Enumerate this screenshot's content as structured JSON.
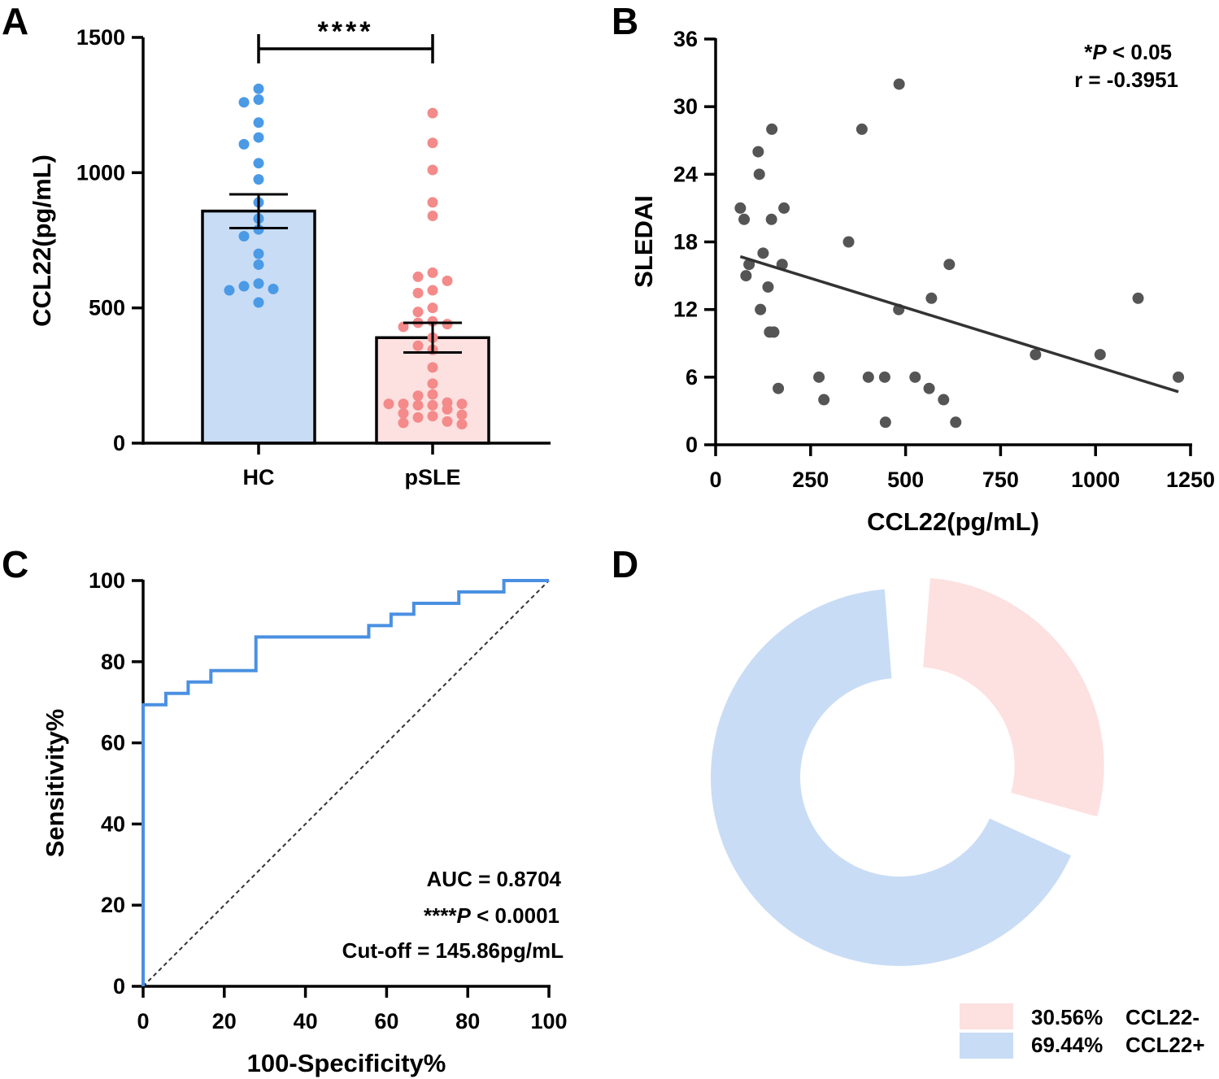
{
  "panels": {
    "A": {
      "label": "A"
    },
    "B": {
      "label": "B"
    },
    "C": {
      "label": "C"
    },
    "D": {
      "label": "D"
    }
  },
  "chart_data": [
    {
      "id": "A",
      "type": "bar",
      "title": "",
      "xlabel": "",
      "ylabel": "CCL22(pg/mL)",
      "ylim": [
        0,
        1500
      ],
      "yticks": [
        0,
        500,
        1000,
        1500
      ],
      "categories": [
        "HC",
        "pSLE"
      ],
      "values": [
        858,
        390
      ],
      "sem": [
        [
          795,
          920
        ],
        [
          335,
          445
        ]
      ],
      "bar_colors": [
        "#c8dcf5",
        "#fde0e0"
      ],
      "point_colors": [
        "#4a9ae6",
        "#f48a8a"
      ],
      "points": [
        [
          1310,
          1270,
          1260,
          1185,
          1130,
          1105,
          1035,
          975,
          890,
          830,
          790,
          765,
          700,
          660,
          590,
          580,
          570,
          565,
          520
        ],
        [
          1220,
          1110,
          1010,
          890,
          840,
          630,
          615,
          600,
          565,
          555,
          500,
          485,
          450,
          445,
          440,
          430,
          390,
          360,
          345,
          280,
          220,
          180,
          175,
          150,
          145,
          145,
          145,
          140,
          140,
          125,
          110,
          105,
          100,
          95,
          80,
          75,
          70
        ]
      ],
      "significance": "****"
    },
    {
      "id": "B",
      "type": "scatter",
      "title": "",
      "xlabel": "CCL22(pg/mL)",
      "ylabel": "SLEDAI",
      "xlim": [
        0,
        1250
      ],
      "ylim": [
        0,
        36
      ],
      "xticks": [
        0,
        250,
        500,
        750,
        1000,
        1250
      ],
      "yticks": [
        0,
        6,
        12,
        18,
        24,
        30,
        36
      ],
      "point_color": "#555555",
      "points": [
        [
          65,
          21
        ],
        [
          75,
          20
        ],
        [
          80,
          15
        ],
        [
          88,
          16
        ],
        [
          112,
          26
        ],
        [
          115,
          24
        ],
        [
          118,
          12
        ],
        [
          125,
          17
        ],
        [
          138,
          14
        ],
        [
          142,
          10
        ],
        [
          147,
          20
        ],
        [
          148,
          28
        ],
        [
          153,
          10
        ],
        [
          165,
          5
        ],
        [
          175,
          16
        ],
        [
          180,
          21
        ],
        [
          272,
          6
        ],
        [
          285,
          4
        ],
        [
          350,
          18
        ],
        [
          385,
          28
        ],
        [
          402,
          6
        ],
        [
          445,
          6
        ],
        [
          447,
          2
        ],
        [
          482,
          12
        ],
        [
          483,
          32
        ],
        [
          525,
          6
        ],
        [
          562,
          5
        ],
        [
          568,
          13
        ],
        [
          600,
          4
        ],
        [
          615,
          16
        ],
        [
          632,
          2
        ],
        [
          842,
          8
        ],
        [
          1012,
          8
        ],
        [
          1112,
          13
        ],
        [
          1218,
          6
        ]
      ],
      "regression": {
        "x1": 65,
        "y1": 16.7,
        "x2": 1218,
        "y2": 4.7
      },
      "annotations": {
        "p_prefix": "*",
        "p_italic": "P",
        "p_rest": " < 0.05",
        "r": "r = -0.3951"
      }
    },
    {
      "id": "C",
      "type": "line",
      "title": "",
      "xlabel": "100-Specificity%",
      "ylabel": "Sensitivity%",
      "xlim": [
        0,
        100
      ],
      "ylim": [
        0,
        100
      ],
      "xticks": [
        0,
        20,
        40,
        60,
        80,
        100
      ],
      "yticks": [
        0,
        20,
        40,
        60,
        80,
        100
      ],
      "series": [
        {
          "name": "ROC",
          "color": "#4a90e2",
          "x": [
            0,
            0,
            5.6,
            5.6,
            11.1,
            11.1,
            16.7,
            16.7,
            27.8,
            27.8,
            55.6,
            55.6,
            61.1,
            61.1,
            66.7,
            66.7,
            77.8,
            77.8,
            88.9,
            88.9,
            100
          ],
          "y": [
            0,
            69.4,
            69.4,
            72.2,
            72.2,
            75,
            75,
            77.8,
            77.8,
            86.1,
            86.1,
            88.9,
            88.9,
            91.7,
            91.7,
            94.4,
            94.4,
            97.2,
            97.2,
            100,
            100
          ]
        },
        {
          "name": "Reference",
          "color": "#333333",
          "dashed": true,
          "x": [
            0,
            100
          ],
          "y": [
            0,
            100
          ]
        }
      ],
      "annotations": {
        "auc": "AUC = 0.8704",
        "p_prefix": "****",
        "p_italic": "P",
        "p_rest": " < 0.0001",
        "cutoff": "Cut-off = 145.86pg/mL"
      }
    },
    {
      "id": "D",
      "type": "pie",
      "title": "",
      "donut": true,
      "slices": [
        {
          "label": "CCL22-",
          "value": 30.56,
          "pct_text": "30.56%",
          "color": "#fde0e0",
          "exploded": true
        },
        {
          "label": "CCL22+",
          "value": 69.44,
          "pct_text": "69.44%",
          "color": "#c8dcf5",
          "exploded": false
        }
      ]
    }
  ]
}
